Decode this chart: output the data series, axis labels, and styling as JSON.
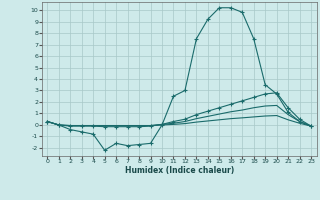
{
  "xlabel": "Humidex (Indice chaleur)",
  "bg_color": "#ceeaea",
  "grid_color": "#a8c8c8",
  "line_color": "#1a6b6b",
  "xlim": [
    -0.5,
    23.5
  ],
  "ylim": [
    -2.7,
    10.7
  ],
  "xticks": [
    0,
    1,
    2,
    3,
    4,
    5,
    6,
    7,
    8,
    9,
    10,
    11,
    12,
    13,
    14,
    15,
    16,
    17,
    18,
    19,
    20,
    21,
    22,
    23
  ],
  "yticks": [
    -2,
    -1,
    0,
    1,
    2,
    3,
    4,
    5,
    6,
    7,
    8,
    9,
    10
  ],
  "line1_x": [
    0,
    1,
    2,
    3,
    4,
    5,
    6,
    7,
    8,
    9,
    10,
    11,
    12,
    13,
    14,
    15,
    16,
    17,
    18,
    19,
    20,
    21,
    22,
    23
  ],
  "line1_y": [
    0.3,
    0.0,
    -0.4,
    -0.6,
    -0.8,
    -2.2,
    -1.6,
    -1.8,
    -1.7,
    -1.6,
    0.0,
    2.5,
    3.0,
    7.5,
    9.2,
    10.2,
    10.2,
    9.8,
    7.5,
    3.5,
    2.7,
    1.1,
    0.3,
    -0.1
  ],
  "line2_x": [
    0,
    1,
    2,
    3,
    4,
    5,
    6,
    7,
    8,
    9,
    10,
    11,
    12,
    13,
    14,
    15,
    16,
    17,
    18,
    19,
    20,
    21,
    22,
    23
  ],
  "line2_y": [
    0.3,
    0.0,
    -0.1,
    -0.1,
    -0.1,
    -0.15,
    -0.15,
    -0.15,
    -0.15,
    -0.1,
    0.05,
    0.3,
    0.5,
    0.9,
    1.2,
    1.5,
    1.8,
    2.1,
    2.4,
    2.7,
    2.8,
    1.5,
    0.5,
    -0.1
  ],
  "line3_x": [
    0,
    1,
    2,
    3,
    4,
    5,
    6,
    7,
    8,
    9,
    10,
    11,
    12,
    13,
    14,
    15,
    16,
    17,
    18,
    19,
    20,
    21,
    22,
    23
  ],
  "line3_y": [
    0.3,
    0.0,
    -0.05,
    -0.05,
    -0.05,
    -0.05,
    -0.05,
    -0.05,
    -0.05,
    -0.05,
    0.05,
    0.15,
    0.3,
    0.55,
    0.75,
    0.95,
    1.15,
    1.3,
    1.5,
    1.65,
    1.7,
    0.9,
    0.3,
    -0.1
  ],
  "line4_x": [
    0,
    1,
    2,
    3,
    4,
    5,
    6,
    7,
    8,
    9,
    10,
    11,
    12,
    13,
    14,
    15,
    16,
    17,
    18,
    19,
    20,
    21,
    22,
    23
  ],
  "line4_y": [
    0.3,
    0.0,
    -0.05,
    -0.05,
    -0.05,
    -0.05,
    -0.05,
    -0.05,
    -0.05,
    -0.05,
    0.0,
    0.05,
    0.12,
    0.25,
    0.35,
    0.45,
    0.55,
    0.62,
    0.7,
    0.78,
    0.82,
    0.45,
    0.15,
    -0.1
  ]
}
